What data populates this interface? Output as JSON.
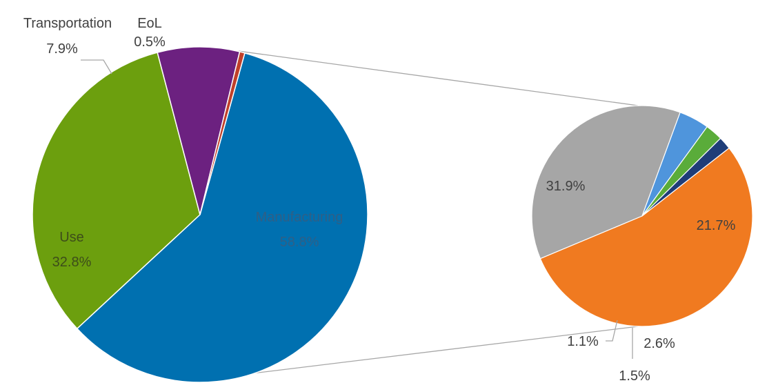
{
  "chart_data": [
    {
      "type": "pie",
      "categories": [
        "Manufacturing",
        "Use",
        "Transportation",
        "EoL"
      ],
      "values": [
        58.8,
        32.8,
        7.9,
        0.5
      ],
      "data_labels": [
        "58.8%",
        "32.8%",
        "7.9%",
        "0.5%"
      ],
      "colors": [
        "#0070b0",
        "#6c9f0e",
        "#6c2180",
        "#c0402a"
      ]
    },
    {
      "type": "pie",
      "values": [
        31.9,
        21.7,
        2.6,
        1.5,
        1.1
      ],
      "data_labels": [
        "31.9%",
        "21.7%",
        "2.6%",
        "1.5%",
        "1.1%"
      ],
      "colors": [
        "#f07a20",
        "#a6a6a6",
        "#4f95dc",
        "#5aac3a",
        "#1f3d78"
      ]
    }
  ]
}
